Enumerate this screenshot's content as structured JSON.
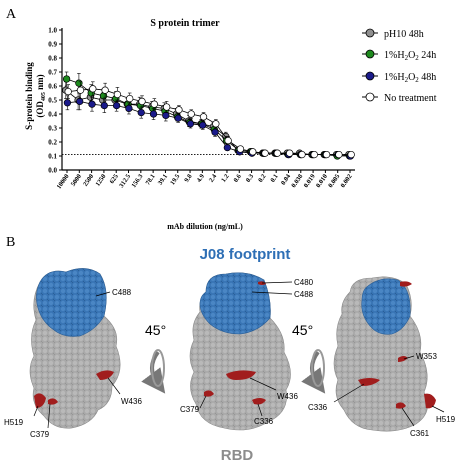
{
  "panel_a_label": "A",
  "panel_b_label": "B",
  "chart_data": {
    "type": "line",
    "title": "S protein trimer",
    "xlabel": "mAb dilution (ng/mL)",
    "ylabel_line1": "S-protein binding",
    "ylabel_line2": "(OD",
    "ylabel_sub": "405",
    "ylabel_tail": " nm)",
    "ylim": [
      0.0,
      1.0
    ],
    "yticks": [
      "0.0",
      "0.1",
      "0.2",
      "0.3",
      "0.4",
      "0.5",
      "0.6",
      "0.7",
      "0.8",
      "0.9",
      "1.0"
    ],
    "categories": [
      "10000",
      "5000",
      "2500",
      "1250",
      "625",
      "312.5",
      "156.3",
      "78.1",
      "39.1",
      "19.5",
      "9.8",
      "4.9",
      "2.4",
      "1.2",
      "0.6",
      "0.3",
      "0.2",
      "0.1",
      "0.04",
      "0.038",
      "0.019",
      "0.010",
      "0.005",
      "0.002"
    ],
    "threshold": 0.11,
    "legend_position": "right",
    "series": [
      {
        "name": "pH10 48h",
        "color": "#8f8f8f",
        "values": [
          0.57,
          0.5,
          0.52,
          0.5,
          0.5,
          0.47,
          0.47,
          0.45,
          0.44,
          0.4,
          0.35,
          0.33,
          0.31,
          0.24,
          0.14,
          0.13,
          0.12,
          0.12,
          0.12,
          0.12,
          0.11,
          0.11,
          0.11,
          0.11
        ],
        "errors": [
          0.06,
          0.07,
          0.06,
          0.05,
          0.05,
          0.04,
          0.05,
          0.04,
          0.04,
          0.04,
          0.04,
          0.03,
          0.03,
          0.03,
          0.02,
          0.01,
          0.01,
          0.01,
          0.01,
          0.01,
          0.01,
          0.01,
          0.01,
          0.01
        ]
      },
      {
        "name_main": "1%H",
        "name_sub1": "2",
        "name_mid": "O",
        "name_sub2": "2",
        "name_tail": " 24h",
        "color": "#1e8a1e",
        "values": [
          0.65,
          0.62,
          0.55,
          0.53,
          0.51,
          0.47,
          0.46,
          0.44,
          0.42,
          0.38,
          0.34,
          0.33,
          0.29,
          0.21,
          0.14,
          0.13,
          0.12,
          0.12,
          0.11,
          0.11,
          0.11,
          0.11,
          0.1,
          0.1
        ],
        "errors": [
          0.05,
          0.07,
          0.06,
          0.05,
          0.05,
          0.04,
          0.04,
          0.04,
          0.04,
          0.03,
          0.03,
          0.03,
          0.03,
          0.03,
          0.02,
          0.01,
          0.01,
          0.01,
          0.01,
          0.01,
          0.01,
          0.01,
          0.01,
          0.01
        ]
      },
      {
        "name_main": "1%H",
        "name_sub1": "2",
        "name_mid": "O",
        "name_sub2": "2",
        "name_tail": " 48h",
        "color": "#1a1a8a",
        "values": [
          0.48,
          0.49,
          0.47,
          0.46,
          0.46,
          0.44,
          0.41,
          0.4,
          0.39,
          0.37,
          0.33,
          0.32,
          0.27,
          0.16,
          0.13,
          0.12,
          0.12,
          0.12,
          0.11,
          0.11,
          0.11,
          0.11,
          0.11,
          0.1
        ],
        "errors": [
          0.05,
          0.06,
          0.05,
          0.05,
          0.04,
          0.04,
          0.04,
          0.04,
          0.04,
          0.03,
          0.03,
          0.03,
          0.03,
          0.02,
          0.02,
          0.01,
          0.01,
          0.01,
          0.01,
          0.01,
          0.01,
          0.01,
          0.01,
          0.01
        ]
      },
      {
        "name": "No treatment",
        "color": "#ffffff",
        "values": [
          0.56,
          0.57,
          0.58,
          0.57,
          0.54,
          0.51,
          0.49,
          0.47,
          0.45,
          0.43,
          0.4,
          0.38,
          0.33,
          0.21,
          0.15,
          0.13,
          0.12,
          0.12,
          0.12,
          0.11,
          0.11,
          0.11,
          0.11,
          0.11
        ],
        "errors": [
          0.05,
          0.06,
          0.05,
          0.05,
          0.05,
          0.04,
          0.04,
          0.04,
          0.04,
          0.03,
          0.03,
          0.03,
          0.03,
          0.03,
          0.02,
          0.01,
          0.01,
          0.01,
          0.01,
          0.01,
          0.01,
          0.01,
          0.01,
          0.01
        ]
      }
    ]
  },
  "panel_b": {
    "title": "J08 footprint",
    "title_color": "#2e6fb5",
    "bottom_label": "RBD",
    "bottom_label_color": "#8c8c8c",
    "rotation_left": "45°",
    "rotation_right": "45°",
    "footprint_color": "#3874b4",
    "protein_color": "#a9a9a9",
    "residue_color": "#a11d1d",
    "left_labels": {
      "c488": "C488",
      "w436": "W436",
      "h519": "H519",
      "c379": "C379"
    },
    "middle_labels": {
      "c480": "C480",
      "c488": "C488",
      "w436": "W436",
      "c379": "C379",
      "c336": "C336"
    },
    "right_labels": {
      "w353": "W353",
      "c336": "C336",
      "h519": "H519",
      "c361": "C361"
    }
  }
}
